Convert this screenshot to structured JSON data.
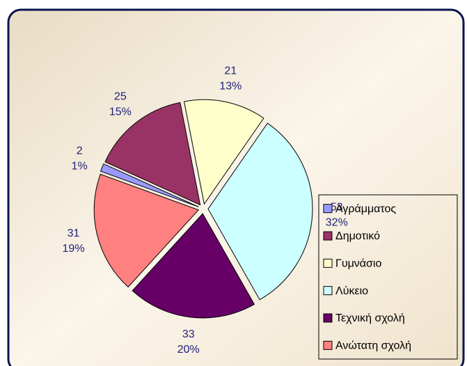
{
  "chart_data": {
    "type": "pie",
    "categories": [
      "Αγράμματος",
      "Δημοτικό",
      "Γυμνάσιο",
      "Λύκειο",
      "Τεχνική σχολή",
      "Ανώτατη σχολή"
    ],
    "values": [
      2,
      25,
      21,
      53,
      33,
      31
    ],
    "percent_labels": [
      "1%",
      "15%",
      "13%",
      "32%",
      "20%",
      "19%"
    ],
    "colors": [
      "#9999ff",
      "#993366",
      "#ffffcc",
      "#ccffff",
      "#660066",
      "#ff8080"
    ],
    "start_angle": 290,
    "legend": "right"
  }
}
